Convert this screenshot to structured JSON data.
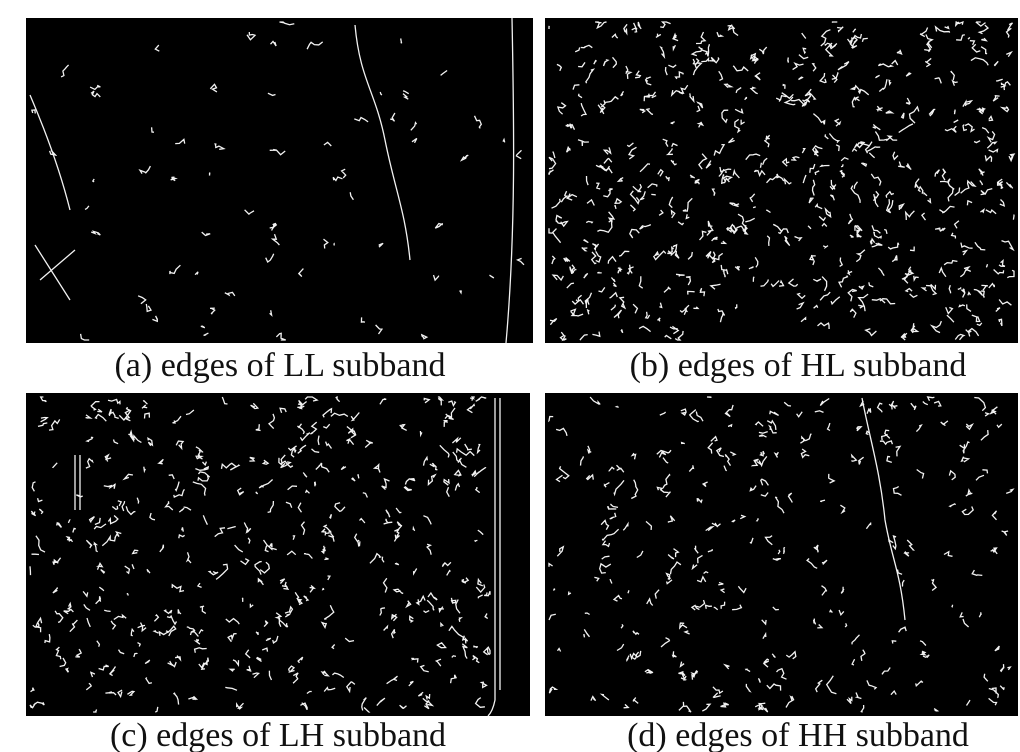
{
  "panels": [
    {
      "caption": "(a) edges of LL subband"
    },
    {
      "caption": "(b) edges of HL subband"
    },
    {
      "caption": "(c) edges of LH subband"
    },
    {
      "caption": "(d) edges of HH subband"
    }
  ]
}
